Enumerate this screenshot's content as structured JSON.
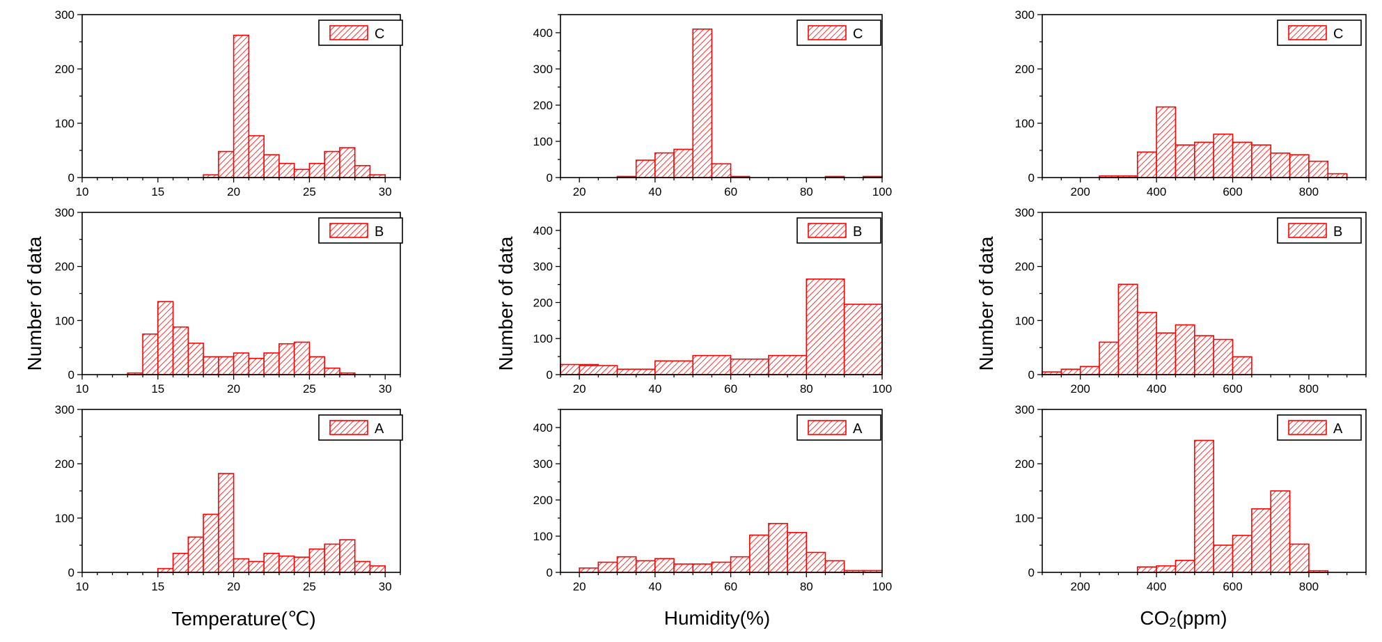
{
  "colors": {
    "bar_stroke": "#ff0000",
    "bar_fill": "#ffffff",
    "axis": "#000000"
  },
  "labels": {
    "y_left": "Number of data",
    "y_middle": "Number of data",
    "y_right": "Number of data",
    "x_temperature": "Temperature(℃)",
    "x_humidity": "Humidity(%)",
    "x_co2_prefix": "CO",
    "x_co2_sub": "2",
    "x_co2_suffix": "(ppm)"
  },
  "chart_data": [
    {
      "type": "bar",
      "variable": "Temperature",
      "legend": "C",
      "xlim": [
        10,
        31
      ],
      "ylim": [
        0,
        300
      ],
      "xticks": [
        10,
        15,
        20,
        25,
        30
      ],
      "yticks": [
        0,
        100,
        200,
        300
      ],
      "bin_width": 1,
      "x": [
        18,
        19,
        20,
        21,
        22,
        23,
        24,
        25,
        26,
        27,
        28,
        29
      ],
      "values": [
        5,
        48,
        262,
        77,
        42,
        26,
        15,
        26,
        48,
        55,
        22,
        5
      ]
    },
    {
      "type": "bar",
      "variable": "Temperature",
      "legend": "B",
      "xlim": [
        10,
        31
      ],
      "ylim": [
        0,
        300
      ],
      "xticks": [
        10,
        15,
        20,
        25,
        30
      ],
      "yticks": [
        0,
        100,
        200,
        300
      ],
      "bin_width": 1,
      "x": [
        13,
        14,
        15,
        16,
        17,
        18,
        19,
        20,
        21,
        22,
        23,
        24,
        25,
        26,
        27
      ],
      "values": [
        3,
        75,
        135,
        88,
        58,
        33,
        33,
        40,
        30,
        40,
        57,
        60,
        33,
        12,
        3
      ]
    },
    {
      "type": "bar",
      "variable": "Temperature",
      "legend": "A",
      "xlim": [
        10,
        31
      ],
      "ylim": [
        0,
        300
      ],
      "xticks": [
        10,
        15,
        20,
        25,
        30
      ],
      "yticks": [
        0,
        100,
        200,
        300
      ],
      "bin_width": 1,
      "x": [
        15,
        16,
        17,
        18,
        19,
        20,
        21,
        22,
        23,
        24,
        25,
        26,
        27,
        28,
        29
      ],
      "values": [
        7,
        35,
        65,
        107,
        182,
        25,
        20,
        35,
        30,
        28,
        43,
        52,
        60,
        20,
        12
      ]
    },
    {
      "type": "bar",
      "variable": "Humidity",
      "legend": "C",
      "xlim": [
        15,
        100
      ],
      "ylim": [
        0,
        450
      ],
      "xticks": [
        20,
        40,
        60,
        80,
        100
      ],
      "yticks": [
        0,
        100,
        200,
        300,
        400
      ],
      "bin_width": 5,
      "x": [
        30,
        35,
        40,
        45,
        50,
        55,
        60,
        85,
        95
      ],
      "values": [
        3,
        48,
        68,
        78,
        410,
        38,
        3,
        3,
        3
      ]
    },
    {
      "type": "bar",
      "variable": "Humidity",
      "legend": "B",
      "xlim": [
        15,
        100
      ],
      "ylim": [
        0,
        450
      ],
      "xticks": [
        20,
        40,
        60,
        80,
        100
      ],
      "yticks": [
        0,
        100,
        200,
        300,
        400
      ],
      "bin_width": 10,
      "x": [
        15,
        20,
        30,
        40,
        50,
        60,
        70,
        80,
        90
      ],
      "values": [
        28,
        25,
        15,
        38,
        53,
        43,
        53,
        265,
        195
      ]
    },
    {
      "type": "bar",
      "variable": "Humidity",
      "legend": "A",
      "xlim": [
        15,
        100
      ],
      "ylim": [
        0,
        450
      ],
      "xticks": [
        20,
        40,
        60,
        80,
        100
      ],
      "yticks": [
        0,
        100,
        200,
        300,
        400
      ],
      "bin_width": 5,
      "x": [
        20,
        25,
        30,
        35,
        40,
        45,
        50,
        55,
        60,
        65,
        70,
        75,
        80,
        85,
        90,
        95
      ],
      "values": [
        12,
        28,
        43,
        32,
        38,
        23,
        23,
        28,
        43,
        103,
        135,
        110,
        55,
        32,
        5,
        5
      ]
    },
    {
      "type": "bar",
      "variable": "CO2",
      "legend": "C",
      "xlim": [
        100,
        950
      ],
      "ylim": [
        0,
        300
      ],
      "xticks": [
        200,
        400,
        600,
        800
      ],
      "yticks": [
        0,
        100,
        200,
        300
      ],
      "bin_width": 50,
      "x": [
        250,
        300,
        350,
        400,
        450,
        500,
        550,
        600,
        650,
        700,
        750,
        800,
        850
      ],
      "values": [
        3,
        3,
        47,
        130,
        60,
        65,
        80,
        65,
        60,
        45,
        42,
        30,
        7
      ]
    },
    {
      "type": "bar",
      "variable": "CO2",
      "legend": "B",
      "xlim": [
        100,
        950
      ],
      "ylim": [
        0,
        300
      ],
      "xticks": [
        200,
        400,
        600,
        800
      ],
      "yticks": [
        0,
        100,
        200,
        300
      ],
      "bin_width": 50,
      "x": [
        100,
        150,
        200,
        250,
        300,
        350,
        400,
        450,
        500,
        550,
        600
      ],
      "values": [
        5,
        10,
        15,
        60,
        167,
        115,
        77,
        92,
        72,
        65,
        33
      ]
    },
    {
      "type": "bar",
      "variable": "CO2",
      "legend": "A",
      "xlim": [
        100,
        950
      ],
      "ylim": [
        0,
        300
      ],
      "xticks": [
        200,
        400,
        600,
        800
      ],
      "yticks": [
        0,
        100,
        200,
        300
      ],
      "bin_width": 50,
      "x": [
        350,
        400,
        450,
        500,
        550,
        600,
        650,
        700,
        750,
        800
      ],
      "values": [
        10,
        12,
        22,
        243,
        50,
        68,
        117,
        150,
        52,
        3
      ]
    }
  ]
}
